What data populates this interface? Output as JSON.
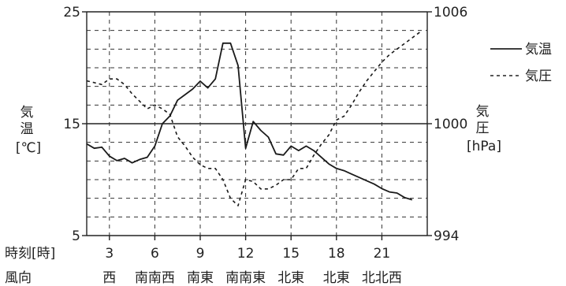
{
  "chart_data": {
    "type": "line",
    "x_range": [
      1.5,
      24
    ],
    "y_left": {
      "label_chars": [
        "気",
        "温"
      ],
      "unit": "[℃]",
      "range": [
        5,
        25
      ],
      "ticks": [
        "25",
        "15",
        "5"
      ]
    },
    "y_right": {
      "label_chars": [
        "気",
        "圧"
      ],
      "unit": "[hPa]",
      "range": [
        994,
        1006
      ],
      "ticks": [
        "1006",
        "1000",
        "994"
      ]
    },
    "x_axis": {
      "label": "時刻[時]",
      "ticks": [
        "3",
        "6",
        "9",
        "12",
        "15",
        "18",
        "21"
      ]
    },
    "wind": {
      "label": "風向",
      "items": [
        {
          "text": "西",
          "x": 3
        },
        {
          "text": "南南西",
          "x": 6
        },
        {
          "text": "南東",
          "x": 9
        },
        {
          "text": "南南東",
          "x": 12
        },
        {
          "text": "北東",
          "x": 15
        },
        {
          "text": "北東",
          "x": 18
        },
        {
          "text": "北北西",
          "x": 21
        }
      ]
    },
    "grid": true,
    "legend_position": "top-right",
    "series": [
      {
        "name": "気温",
        "axis": "left",
        "style": "solid",
        "points": [
          [
            1.5,
            13.2
          ],
          [
            2,
            12.8
          ],
          [
            2.5,
            12.9
          ],
          [
            3,
            12.1
          ],
          [
            3.5,
            11.7
          ],
          [
            4,
            11.9
          ],
          [
            4.5,
            11.5
          ],
          [
            5,
            11.8
          ],
          [
            5.5,
            12.0
          ],
          [
            6,
            13.0
          ],
          [
            6.5,
            15.0
          ],
          [
            7,
            15.7
          ],
          [
            7.5,
            17.1
          ],
          [
            8,
            17.6
          ],
          [
            8.5,
            18.1
          ],
          [
            9,
            18.8
          ],
          [
            9.5,
            18.2
          ],
          [
            10,
            19.0
          ],
          [
            10.5,
            22.2
          ],
          [
            11,
            22.2
          ],
          [
            11.5,
            20.2
          ],
          [
            12,
            12.8
          ],
          [
            12.5,
            15.2
          ],
          [
            13,
            14.4
          ],
          [
            13.5,
            13.8
          ],
          [
            14,
            12.3
          ],
          [
            14.5,
            12.2
          ],
          [
            15,
            13.0
          ],
          [
            15.5,
            12.6
          ],
          [
            16,
            13.0
          ],
          [
            16.5,
            12.6
          ],
          [
            17,
            12.0
          ],
          [
            17.5,
            11.4
          ],
          [
            18,
            11.0
          ],
          [
            18.5,
            10.8
          ],
          [
            19,
            10.5
          ],
          [
            19.5,
            10.2
          ],
          [
            20,
            9.9
          ],
          [
            20.5,
            9.6
          ],
          [
            21,
            9.2
          ],
          [
            21.5,
            8.9
          ],
          [
            22,
            8.8
          ],
          [
            22.5,
            8.4
          ],
          [
            23,
            8.2
          ]
        ]
      },
      {
        "name": "気圧",
        "axis": "right",
        "style": "dashed",
        "points": [
          [
            1.5,
            1002.3
          ],
          [
            2,
            1002.2
          ],
          [
            2.5,
            1002.1
          ],
          [
            3,
            1002.4
          ],
          [
            3.5,
            1002.4
          ],
          [
            4,
            1002.1
          ],
          [
            4.5,
            1001.6
          ],
          [
            5,
            1001.2
          ],
          [
            5.5,
            1000.8
          ],
          [
            6,
            1001.0
          ],
          [
            6.5,
            1000.8
          ],
          [
            7,
            1000.5
          ],
          [
            7.5,
            999.3
          ],
          [
            8,
            998.8
          ],
          [
            8.5,
            998.2
          ],
          [
            9,
            997.8
          ],
          [
            9.5,
            997.6
          ],
          [
            10,
            997.6
          ],
          [
            10.5,
            997.0
          ],
          [
            11,
            996.0
          ],
          [
            11.5,
            995.6
          ],
          [
            12,
            997.0
          ],
          [
            12.5,
            996.9
          ],
          [
            13,
            996.5
          ],
          [
            13.5,
            996.5
          ],
          [
            14,
            996.7
          ],
          [
            14.5,
            997.0
          ],
          [
            15,
            997.0
          ],
          [
            15.5,
            997.6
          ],
          [
            16,
            997.6
          ],
          [
            16.5,
            998.3
          ],
          [
            17,
            998.9
          ],
          [
            17.5,
            999.4
          ],
          [
            18,
            1000.2
          ],
          [
            18.5,
            1000.4
          ],
          [
            19,
            1001.0
          ],
          [
            19.5,
            1001.7
          ],
          [
            20,
            1002.3
          ],
          [
            20.5,
            1002.8
          ],
          [
            21,
            1003.3
          ],
          [
            21.5,
            1003.7
          ],
          [
            22,
            1004.0
          ],
          [
            22.5,
            1004.3
          ],
          [
            23,
            1004.6
          ],
          [
            23.5,
            1004.9
          ]
        ]
      }
    ]
  }
}
